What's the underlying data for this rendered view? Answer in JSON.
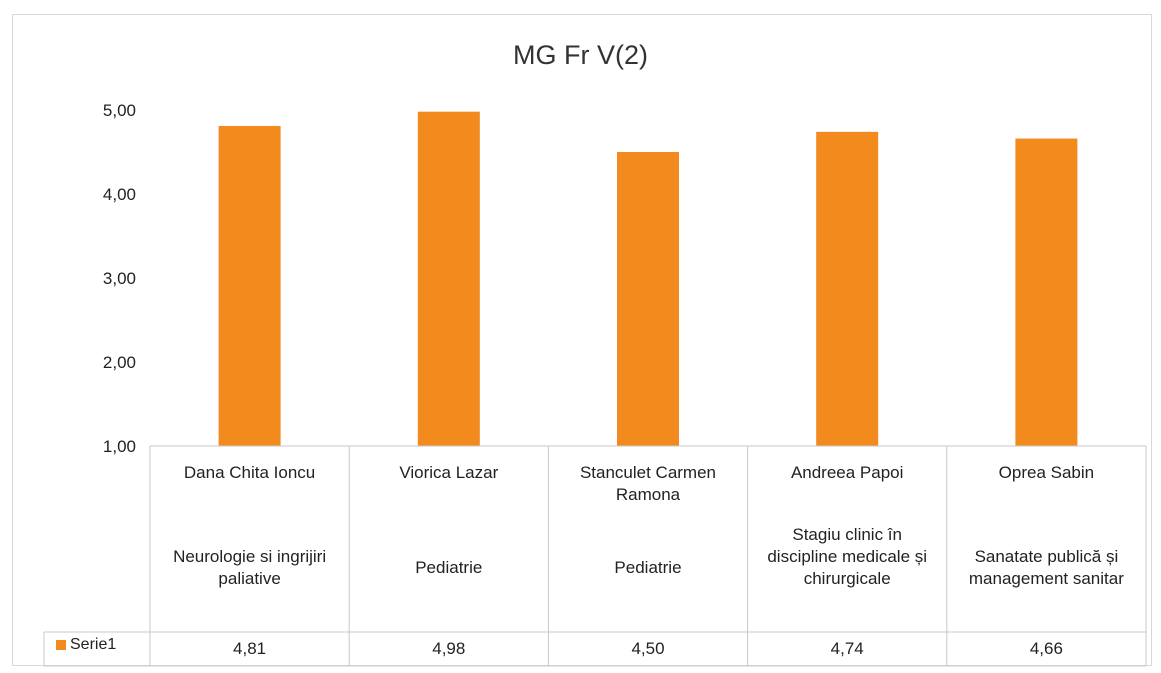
{
  "chart_data": {
    "type": "bar",
    "title": "MG Fr V(2)",
    "ylim": [
      1,
      5
    ],
    "yticks": [
      "1,00",
      "2,00",
      "3,00",
      "4,00",
      "5,00"
    ],
    "grid": false,
    "bar_color": "#f28a1e",
    "categories": [
      {
        "name": "Dana Chita Ioncu",
        "discipline": "Neurologie si ingrijiri paliative"
      },
      {
        "name": "Viorica Lazar",
        "discipline": "Pediatrie"
      },
      {
        "name": "Stanculet Carmen Ramona",
        "discipline": "Pediatrie"
      },
      {
        "name": "Andreea Papoi",
        "discipline": "Stagiu clinic în discipline medicale și chirurgicale"
      },
      {
        "name": "Oprea Sabin",
        "discipline": "Sanatate publică și management sanitar"
      }
    ],
    "series": [
      {
        "name": "Serie1",
        "values": [
          4.81,
          4.98,
          4.5,
          4.74,
          4.66
        ],
        "labels": [
          "4,81",
          "4,98",
          "4,50",
          "4,74",
          "4,66"
        ]
      }
    ]
  }
}
